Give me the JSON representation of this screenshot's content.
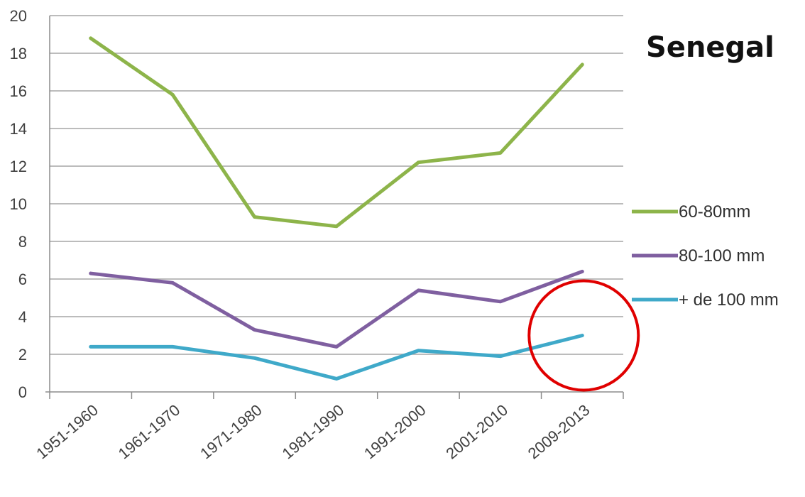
{
  "chart_data": {
    "type": "line",
    "title": "Senegal",
    "categories": [
      "1951-1960",
      "1961-1970",
      "1971-1980",
      "1981-1990",
      "1991-2000",
      "2001-2010",
      "2009-2013"
    ],
    "series": [
      {
        "name": "60-80mm",
        "color": "#8DB44A",
        "values": [
          18.8,
          15.8,
          9.3,
          8.8,
          12.2,
          12.7,
          17.4
        ]
      },
      {
        "name": "80-100 mm",
        "color": "#7F5FA0",
        "values": [
          6.3,
          5.8,
          3.3,
          2.4,
          5.4,
          4.8,
          6.4
        ]
      },
      {
        "name": "+ de 100 mm",
        "color": "#3FA9C9",
        "values": [
          2.4,
          2.4,
          1.8,
          0.7,
          2.2,
          1.9,
          3.0
        ]
      }
    ],
    "yticks": [
      "0",
      "2",
      "4",
      "6",
      "8",
      "10",
      "12",
      "14",
      "16",
      "18",
      "20"
    ],
    "ylim": [
      0,
      20
    ],
    "grid": true,
    "legend_position": "right",
    "annotation": {
      "type": "circle",
      "color": "#E00000",
      "target_category": "2009-2013",
      "target_series": "+ de 100 mm"
    }
  }
}
